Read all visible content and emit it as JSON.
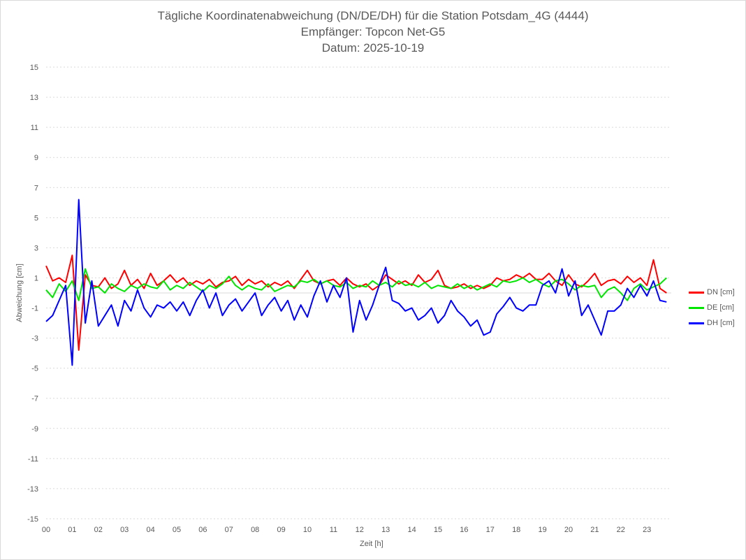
{
  "chart_data": {
    "type": "line",
    "title": "Tägliche Koordinatenabweichung (DN/DE/DH) für die Station Potsdam_4G (4444)",
    "subtitle": "Empfänger: Topcon Net-G5",
    "date_line": "Datum: 2025-10-19",
    "xlabel": "Zeit [h]",
    "ylabel": "Abweichung [cm]",
    "xlim": [
      0,
      24
    ],
    "ylim": [
      -15,
      15
    ],
    "xticks": [
      "00",
      "01",
      "02",
      "03",
      "04",
      "05",
      "06",
      "07",
      "08",
      "09",
      "10",
      "11",
      "12",
      "13",
      "14",
      "15",
      "16",
      "17",
      "18",
      "19",
      "20",
      "21",
      "22",
      "23"
    ],
    "yticks": [
      15,
      13,
      11,
      9,
      7,
      5,
      3,
      1,
      -1,
      -3,
      -5,
      -7,
      -9,
      -11,
      -13,
      -15
    ],
    "grid": true,
    "legend": "right",
    "x": [
      0,
      0.25,
      0.5,
      0.75,
      1,
      1.25,
      1.5,
      1.75,
      2,
      2.25,
      2.5,
      2.75,
      3,
      3.25,
      3.5,
      3.75,
      4,
      4.25,
      4.5,
      4.75,
      5,
      5.25,
      5.5,
      5.75,
      6,
      6.25,
      6.5,
      6.75,
      7,
      7.25,
      7.5,
      7.75,
      8,
      8.25,
      8.5,
      8.75,
      9,
      9.25,
      9.5,
      9.75,
      10,
      10.25,
      10.5,
      10.75,
      11,
      11.25,
      11.5,
      11.75,
      12,
      12.25,
      12.5,
      12.75,
      13,
      13.25,
      13.5,
      13.75,
      14,
      14.25,
      14.5,
      14.75,
      15,
      15.25,
      15.5,
      15.75,
      16,
      16.25,
      16.5,
      16.75,
      17,
      17.25,
      17.5,
      17.75,
      18,
      18.25,
      18.5,
      18.75,
      19,
      19.25,
      19.5,
      19.75,
      20,
      20.25,
      20.5,
      20.75,
      21,
      21.25,
      21.5,
      21.75,
      22,
      22.25,
      22.5,
      22.75,
      23,
      23.25,
      23.5,
      23.75
    ],
    "series": [
      {
        "name": "DN [cm]",
        "color": "#ff0000",
        "values": [
          1.8,
          0.8,
          1.0,
          0.7,
          2.5,
          -3.8,
          1.2,
          0.5,
          0.4,
          1.0,
          0.3,
          0.6,
          1.5,
          0.5,
          0.9,
          0.3,
          1.3,
          0.5,
          0.8,
          1.2,
          0.7,
          1.0,
          0.5,
          0.8,
          0.6,
          0.9,
          0.4,
          0.7,
          0.8,
          1.1,
          0.5,
          0.9,
          0.6,
          0.8,
          0.4,
          0.7,
          0.5,
          0.8,
          0.3,
          0.9,
          1.5,
          0.8,
          0.6,
          0.8,
          0.9,
          0.5,
          1.0,
          0.6,
          0.4,
          0.6,
          0.2,
          0.5,
          1.2,
          0.9,
          0.6,
          0.8,
          0.5,
          1.2,
          0.7,
          0.9,
          1.5,
          0.5,
          0.3,
          0.4,
          0.6,
          0.3,
          0.5,
          0.3,
          0.5,
          1.0,
          0.8,
          0.9,
          1.2,
          1.0,
          1.3,
          0.9,
          0.9,
          1.3,
          0.8,
          0.5,
          1.2,
          0.6,
          0.4,
          0.8,
          1.3,
          0.5,
          0.8,
          0.9,
          0.6,
          1.1,
          0.7,
          1.0,
          0.5,
          2.2,
          0.3,
          0.0
        ]
      },
      {
        "name": "DE [cm]",
        "color": "#00e600",
        "values": [
          0.2,
          -0.3,
          0.6,
          0.1,
          0.8,
          -0.5,
          1.6,
          0.3,
          0.4,
          0.0,
          0.6,
          0.3,
          0.1,
          0.5,
          0.3,
          0.6,
          0.4,
          0.3,
          0.8,
          0.2,
          0.5,
          0.3,
          0.7,
          0.4,
          0.1,
          0.5,
          0.3,
          0.6,
          1.1,
          0.5,
          0.2,
          0.5,
          0.3,
          0.2,
          0.6,
          0.1,
          0.3,
          0.5,
          0.4,
          0.8,
          0.7,
          0.9,
          0.6,
          0.8,
          0.5,
          0.4,
          0.7,
          0.3,
          0.5,
          0.4,
          0.8,
          0.5,
          0.7,
          0.4,
          0.8,
          0.5,
          0.6,
          0.4,
          0.7,
          0.3,
          0.5,
          0.4,
          0.3,
          0.6,
          0.3,
          0.5,
          0.2,
          0.4,
          0.6,
          0.4,
          0.8,
          0.7,
          0.8,
          1.0,
          0.7,
          0.9,
          0.6,
          0.4,
          0.8,
          0.9,
          0.6,
          0.2,
          0.5,
          0.4,
          0.5,
          -0.3,
          0.2,
          0.4,
          0.0,
          -0.5,
          0.3,
          0.6,
          0.2,
          0.4,
          0.6,
          1.0
        ]
      },
      {
        "name": "DH [cm]",
        "color": "#0000ff",
        "values": [
          -1.9,
          -1.5,
          -0.5,
          0.5,
          -4.8,
          6.2,
          -2.0,
          0.8,
          -2.2,
          -1.5,
          -0.8,
          -2.2,
          -0.5,
          -1.2,
          0.2,
          -1.0,
          -1.6,
          -0.8,
          -1.0,
          -0.6,
          -1.2,
          -0.6,
          -1.5,
          -0.5,
          0.2,
          -1.0,
          0.0,
          -1.5,
          -0.8,
          -0.4,
          -1.2,
          -0.6,
          0.0,
          -1.5,
          -0.8,
          -0.3,
          -1.2,
          -0.5,
          -1.8,
          -0.8,
          -1.6,
          -0.2,
          0.8,
          -0.6,
          0.5,
          -0.3,
          1.0,
          -2.6,
          -0.5,
          -1.8,
          -0.8,
          0.5,
          1.7,
          -0.5,
          -0.7,
          -1.2,
          -1.0,
          -1.8,
          -1.5,
          -1.0,
          -2.0,
          -1.5,
          -0.5,
          -1.2,
          -1.6,
          -2.2,
          -1.8,
          -2.8,
          -2.6,
          -1.4,
          -0.9,
          -0.3,
          -1.0,
          -1.2,
          -0.8,
          -0.8,
          0.5,
          0.8,
          0.0,
          1.6,
          -0.2,
          0.8,
          -1.5,
          -0.8,
          -1.8,
          -2.8,
          -1.2,
          -1.2,
          -0.8,
          0.3,
          -0.3,
          0.5,
          -0.2,
          0.8,
          -0.5,
          -0.6
        ]
      }
    ]
  }
}
